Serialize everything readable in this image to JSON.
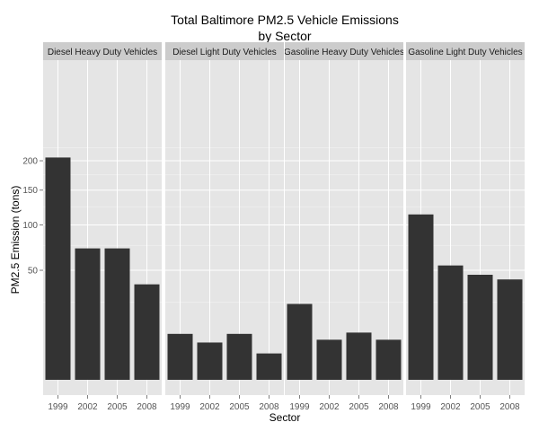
{
  "chart_data": {
    "type": "bar",
    "title_lines": [
      "Total Baltimore PM2.5 Vehicle Emissions",
      "by Sector"
    ],
    "xlabel": "Sector",
    "ylabel": "PM2.5 Emission (tons)",
    "y_scale": "sqrt",
    "ylim": [
      0,
      235
    ],
    "y_ticks": [
      50,
      100,
      150,
      200
    ],
    "categories": [
      "1999",
      "2002",
      "2005",
      "2008"
    ],
    "panels": [
      {
        "name": "Diesel Heavy Duty Vehicles",
        "values": [
          206,
          72,
          72,
          38
        ]
      },
      {
        "name": "Diesel Light Duty Vehicles",
        "values": [
          8.8,
          5.8,
          8.8,
          2.9
        ]
      },
      {
        "name": "Gasoline Heavy Duty Vehicles",
        "values": [
          24.0,
          6.7,
          9.3,
          6.7
        ]
      },
      {
        "name": "Gasoline Light Duty Vehicles",
        "values": [
          114,
          54.5,
          46,
          42
        ]
      }
    ],
    "grid": true,
    "colors": {
      "panel_background": "#e5e5e5",
      "gridline": "#ffffff",
      "bar": "#333333",
      "strip_background": "#cccccc"
    }
  }
}
